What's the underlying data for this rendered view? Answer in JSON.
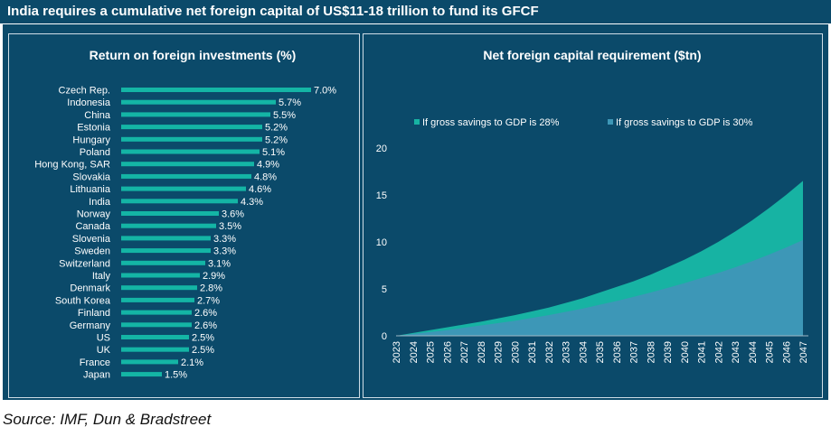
{
  "header": {
    "title": "India requires a cumulative net foreign capital of US$11-18 trillion to fund its GFCF"
  },
  "source": "Source: IMF, Dun & Bradstreet",
  "colors": {
    "background": "#0b4a6a",
    "bar": "#14b5a5",
    "area_28": "#17b3a3",
    "area_30": "#3d97b7",
    "text": "#ffffff"
  },
  "chart_data": [
    {
      "type": "bar",
      "orientation": "horizontal",
      "title": "Return on foreign investments (%)",
      "categories": [
        "Czech Rep.",
        "Indonesia",
        "China",
        "Estonia",
        "Hungary",
        "Poland",
        "Hong Kong, SAR",
        "Slovakia",
        "Lithuania",
        "India",
        "Norway",
        "Canada",
        "Slovenia",
        "Sweden",
        "Switzerland",
        "Italy",
        "Denmark",
        "South Korea",
        "Finland",
        "Germany",
        "US",
        "UK",
        "France",
        "Japan"
      ],
      "values": [
        7.0,
        5.7,
        5.5,
        5.2,
        5.2,
        5.1,
        4.9,
        4.8,
        4.6,
        4.3,
        3.6,
        3.5,
        3.3,
        3.3,
        3.1,
        2.9,
        2.8,
        2.7,
        2.6,
        2.6,
        2.5,
        2.5,
        2.1,
        1.5
      ],
      "value_labels": [
        "7.0%",
        "5.7%",
        "5.5%",
        "5.2%",
        "5.2%",
        "5.1%",
        "4.9%",
        "4.8%",
        "4.6%",
        "4.3%",
        "3.6%",
        "3.5%",
        "3.3%",
        "3.3%",
        "3.1%",
        "2.9%",
        "2.8%",
        "2.7%",
        "2.6%",
        "2.6%",
        "2.5%",
        "2.5%",
        "2.1%",
        "1.5%"
      ]
    },
    {
      "type": "area",
      "title": "Net foreign capital requirement ($tn)",
      "x": [
        "2023",
        "2024",
        "2025",
        "2026",
        "2027",
        "2028",
        "2029",
        "2030",
        "2031",
        "2032",
        "2033",
        "2034",
        "2035",
        "2036",
        "2037",
        "2038",
        "2039",
        "2040",
        "2041",
        "2042",
        "2043",
        "2044",
        "2045",
        "2046",
        "2047"
      ],
      "series": [
        {
          "name": "If gross savings to GDP is 28%",
          "values": [
            0,
            0.3,
            0.6,
            0.9,
            1.2,
            1.5,
            1.85,
            2.2,
            2.6,
            3.0,
            3.5,
            4.0,
            4.6,
            5.2,
            5.8,
            6.5,
            7.3,
            8.1,
            9.0,
            10.0,
            11.1,
            12.3,
            13.6,
            15.0,
            16.5
          ]
        },
        {
          "name": "If gross savings to GDP is 30%",
          "values": [
            0,
            0.2,
            0.4,
            0.6,
            0.85,
            1.1,
            1.35,
            1.6,
            1.9,
            2.2,
            2.55,
            2.9,
            3.3,
            3.7,
            4.15,
            4.6,
            5.1,
            5.6,
            6.15,
            6.7,
            7.3,
            7.95,
            8.65,
            9.4,
            10.2
          ]
        }
      ],
      "ylim": [
        0,
        20
      ],
      "yticks": [
        "0",
        "5",
        "10",
        "15",
        "20"
      ]
    }
  ]
}
